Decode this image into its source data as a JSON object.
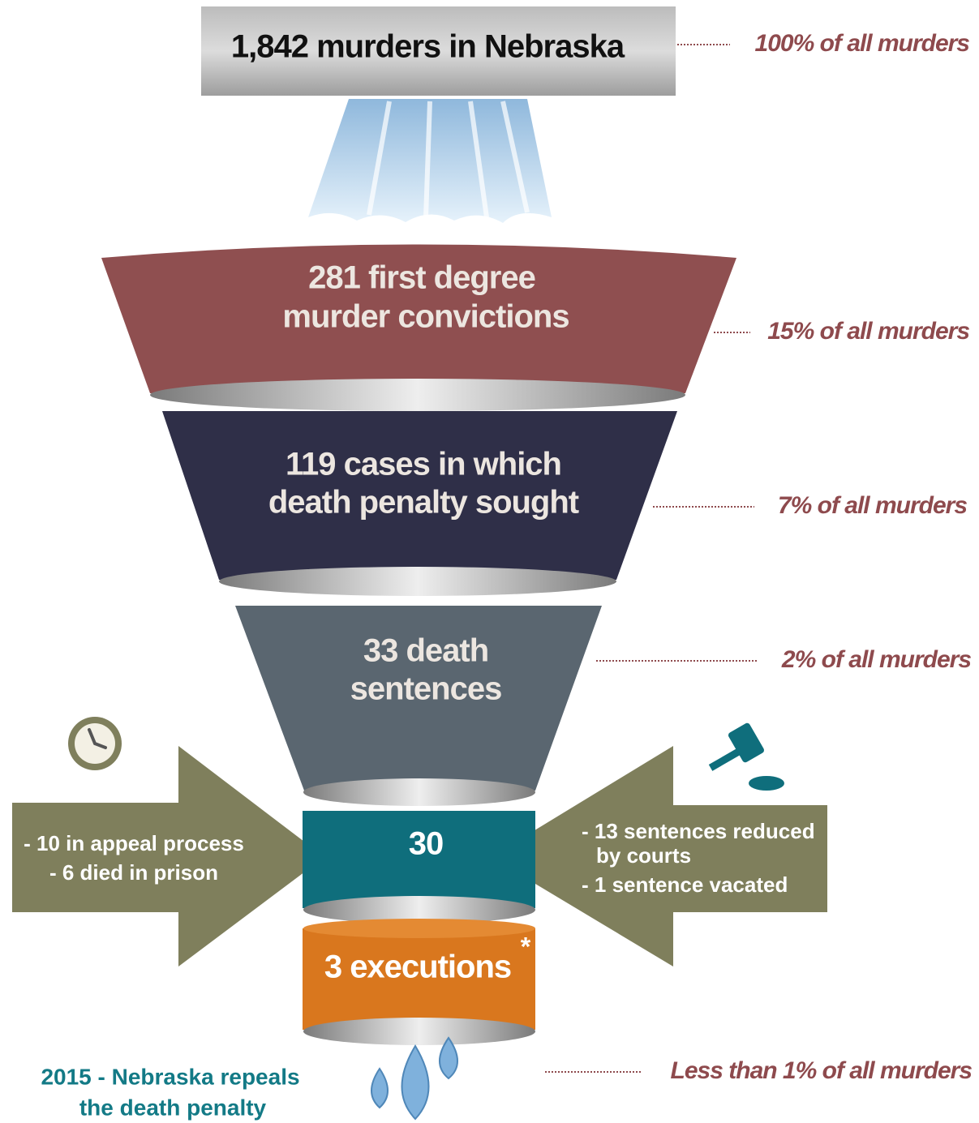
{
  "top": {
    "label": "1,842 murders in Nebraska",
    "note": "100% of all murders"
  },
  "stages": [
    {
      "lines": [
        "281 first degree",
        "murder convictions"
      ],
      "note": "15% of all murders"
    },
    {
      "lines": [
        "119 cases in which",
        "death penalty sought"
      ],
      "note": "7% of all murders"
    },
    {
      "lines": [
        "33 death",
        "sentences"
      ],
      "note": "2% of all murders"
    },
    {
      "lines": [
        "30"
      ]
    },
    {
      "lines": [
        "3 executions"
      ],
      "asterisk": "*",
      "note": "Less than 1% of all murders"
    }
  ],
  "left_arrow": [
    "- 10 in appeal process",
    "- 6 died in prison"
  ],
  "right_arrow": [
    "- 13 sentences reduced",
    "by courts",
    "- 1 sentence vacated"
  ],
  "footer": [
    "2015 - Nebraska repeals",
    "the death penalty"
  ]
}
